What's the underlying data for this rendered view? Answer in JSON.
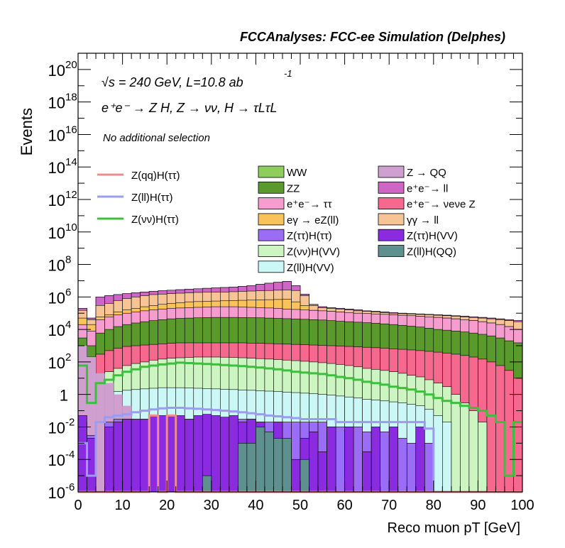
{
  "header": {
    "title": "FCCAnalyses: FCC-ee Simulation (Delphes)"
  },
  "annotations": {
    "energy": "√s = 240 GeV, L=10.8 ab",
    "energy_exponent": "-1",
    "process": "e⁺e⁻ → Z H, Z → νν, H → τLτL",
    "selection": "No additional selection"
  },
  "legend": {
    "lines": [
      {
        "label": "Z(qq)H(ττ)",
        "color": "#f08c8c"
      },
      {
        "label": "Z(ll)H(ττ)",
        "color": "#9b9bf0"
      },
      {
        "label": "Z(νν)H(ττ)",
        "color": "#3cbf3c"
      }
    ],
    "boxes_col1": [
      {
        "label": "WW",
        "color": "#8fce5e"
      },
      {
        "label": "ZZ",
        "color": "#5a9a2c"
      },
      {
        "label": "e⁺e⁻→ ττ",
        "color": "#f79ccf"
      },
      {
        "label": "eγ → eZ(ll)",
        "color": "#f9c25a"
      },
      {
        "label": "Z(ττ)H(ττ)",
        "color": "#9b6cf5"
      },
      {
        "label": "Z(νν)H(VV)",
        "color": "#ccf5c2"
      },
      {
        "label": "Z(ll)H(VV)",
        "color": "#ccf7f7"
      }
    ],
    "boxes_col2": [
      {
        "label": "Z → QQ",
        "color": "#cfa0cf"
      },
      {
        "label": "e⁺e⁻→ ll",
        "color": "#cf66c6"
      },
      {
        "label": "e⁺e⁻→ νeνe Z",
        "color": "#f6688e"
      },
      {
        "label": "γγ → ll",
        "color": "#f7c496"
      },
      {
        "label": "Z(ττ)H(VV)",
        "color": "#8a2be2"
      },
      {
        "label": "Z(ll)H(QQ)",
        "color": "#5f9090"
      }
    ]
  },
  "chart_data": {
    "type": "area",
    "title": "FCCAnalyses: FCC-ee Simulation (Delphes)",
    "xlabel": "Reco muon pT [GeV]",
    "ylabel": "Events",
    "xlim": [
      0,
      100
    ],
    "ylim": [
      1e-06,
      1e+21
    ],
    "log_y": true,
    "legend_position": "top-left",
    "x_ticks": [
      "0",
      "10",
      "20",
      "30",
      "40",
      "50",
      "60",
      "70",
      "80",
      "90",
      "100"
    ],
    "y_ticks": [
      {
        "base": "10",
        "exp": "-6",
        "value": 1e-06
      },
      {
        "base": "10",
        "exp": "-4",
        "value": 0.0001
      },
      {
        "base": "10",
        "exp": "-2",
        "value": 0.01
      },
      {
        "base": "1",
        "exp": "",
        "value": 1
      },
      {
        "base": "10",
        "exp": "2",
        "value": 100.0
      },
      {
        "base": "10",
        "exp": "4",
        "value": 10000.0
      },
      {
        "base": "10",
        "exp": "6",
        "value": 1000000.0
      },
      {
        "base": "10",
        "exp": "8",
        "value": 100000000.0
      },
      {
        "base": "10",
        "exp": "10",
        "value": 10000000000.0
      },
      {
        "base": "10",
        "exp": "12",
        "value": 1000000000000.0
      },
      {
        "base": "10",
        "exp": "14",
        "value": 100000000000000.0
      },
      {
        "base": "10",
        "exp": "16",
        "value": 1e+16
      },
      {
        "base": "10",
        "exp": "18",
        "value": 1e+18
      },
      {
        "base": "10",
        "exp": "20",
        "value": 1e+20
      }
    ],
    "stack_x_edges": [
      0,
      2,
      4,
      6,
      8,
      10,
      12,
      14,
      16,
      18,
      20,
      22,
      24,
      26,
      28,
      30,
      32,
      34,
      36,
      38,
      40,
      42,
      44,
      46,
      48,
      50,
      52,
      54,
      56,
      58,
      60,
      62,
      64,
      66,
      68,
      70,
      72,
      74,
      76,
      78,
      80,
      82,
      84,
      86,
      88,
      90,
      92,
      94,
      96,
      98,
      100
    ],
    "stack_totals": [
      {
        "name": "Z(ll)H(VV)",
        "color": "#ccf7f7",
        "values": [
          0.05,
          0.8,
          0.9,
          1.2,
          1.5,
          1.8,
          2,
          2.2,
          2.4,
          2.6,
          2.6,
          2.6,
          2.5,
          2.4,
          2.3,
          2.2,
          2.1,
          2,
          1.9,
          1.8,
          1.7,
          1.6,
          1.5,
          1.4,
          1.3,
          1.2,
          1.1,
          1,
          0.9,
          0.8,
          0.7,
          0.6,
          0.5,
          0.45,
          0.4,
          0.35,
          0.3,
          0.25,
          0.2,
          0.12,
          0.05,
          0.02,
          0,
          0,
          0,
          0,
          0,
          0,
          0,
          0
        ]
      },
      {
        "name": "Z(νν)H(VV)",
        "color": "#ccf5c2",
        "values": [
          30,
          10,
          15,
          25,
          40,
          60,
          80,
          100,
          130,
          150,
          170,
          180,
          190,
          200,
          200,
          200,
          195,
          190,
          180,
          170,
          160,
          150,
          140,
          130,
          120,
          110,
          100,
          90,
          80,
          70,
          60,
          50,
          40,
          35,
          30,
          25,
          20,
          15,
          12,
          8,
          5,
          3,
          1,
          0.3,
          0.1,
          0.02,
          0,
          0,
          0,
          0
        ]
      },
      {
        "name": "e⁺e⁻→ νeνe Z",
        "color": "#f6688e",
        "values": [
          600,
          200,
          300,
          500,
          700,
          900,
          1000,
          1100,
          1200,
          1300,
          1400,
          1500,
          1500,
          1500,
          1500,
          1500,
          1500,
          1500,
          1500,
          1450,
          1400,
          1350,
          1300,
          1250,
          1200,
          1150,
          1100,
          1050,
          1000,
          950,
          900,
          850,
          800,
          750,
          700,
          650,
          600,
          550,
          500,
          450,
          400,
          350,
          300,
          250,
          200,
          150,
          100,
          60,
          30,
          10
        ]
      },
      {
        "name": "ZZ",
        "color": "#5a9a2c",
        "values": [
          3000,
          1000,
          6000,
          10000,
          15000,
          20000,
          25000,
          30000,
          35000,
          40000,
          45000,
          48000,
          50000,
          52000,
          54000,
          55000,
          55000,
          55000,
          54000,
          53000,
          52000,
          50000,
          48000,
          46000,
          44000,
          42000,
          40000,
          38000,
          35000,
          32000,
          30000,
          28000,
          26000,
          24000,
          22000,
          20000,
          18000,
          16000,
          14000,
          12000,
          10000,
          9000,
          8000,
          7000,
          6000,
          5000,
          4000,
          3000,
          2000,
          1500
        ]
      },
      {
        "name": "e⁺e⁻→ ττ",
        "color": "#f79ccf",
        "values": [
          20000,
          8000,
          40000,
          60000,
          80000,
          100000,
          120000,
          140000,
          160000,
          180000,
          200000,
          210000,
          220000,
          230000,
          240000,
          250000,
          250000,
          250000,
          240000,
          230000,
          220000,
          210000,
          200000,
          180000,
          170000,
          160000,
          150000,
          140000,
          130000,
          120000,
          110000,
          100000,
          95000,
          90000,
          85000,
          80000,
          75000,
          70000,
          65000,
          60000,
          55000,
          50000,
          45000,
          40000,
          35000,
          30000,
          25000,
          20000,
          15000,
          10000
        ]
      },
      {
        "name": "eγ → eZ(ll)",
        "color": "#f9c25a",
        "values": [
          50000,
          20000,
          60000,
          80000,
          120000,
          160000,
          200000,
          250000,
          300000,
          350000,
          400000,
          450000,
          500000,
          520000,
          540000,
          560000,
          580000,
          600000,
          620000,
          640000,
          660000,
          680000,
          700000,
          720000,
          500000,
          300000,
          150000,
          140000,
          130000,
          120000,
          110000,
          100000,
          95000,
          90000,
          85000,
          80000,
          75000,
          70000,
          65000,
          60000,
          55000,
          50000,
          45000,
          40000,
          35000,
          30000,
          25000,
          20000,
          15000,
          10000
        ]
      },
      {
        "name": "γγ → ll",
        "color": "#f7c496",
        "values": [
          150000,
          40000,
          300000,
          400000,
          600000,
          800000,
          1000000,
          1200000,
          1400000,
          1500000,
          1600000,
          1700000,
          1800000,
          1900000,
          2000000,
          2000000,
          2000000,
          2100000,
          2200000,
          2300000,
          2400000,
          2500000,
          2600000,
          2700000,
          2500000,
          1200000,
          300000,
          220000,
          200000,
          180000,
          160000,
          140000,
          130000,
          120000,
          110000,
          100000,
          95000,
          90000,
          85000,
          80000,
          75000,
          70000,
          65000,
          60000,
          55000,
          50000,
          45000,
          40000,
          35000,
          30000
        ]
      },
      {
        "name": "e⁺e⁻→ ll",
        "color": "#cf66c6",
        "values": [
          200000,
          50000,
          1000000,
          1200000,
          1400000,
          1600000,
          1800000,
          2000000,
          2200000,
          2400000,
          2600000,
          2800000,
          3000000,
          3200000,
          3400000,
          3600000,
          3800000,
          4000000,
          4500000,
          5000000,
          6000000,
          7000000,
          8000000,
          9000000,
          5000000,
          1500000,
          350000,
          250000,
          220000,
          200000,
          180000,
          160000,
          140000,
          130000,
          120000,
          110000,
          100000,
          95000,
          90000,
          85000,
          80000,
          75000,
          70000,
          65000,
          60000,
          55000,
          50000,
          45000,
          40000,
          35000
        ]
      },
      {
        "name": "Z → QQ",
        "color": "#cfa0cf",
        "values": [
          200000,
          50000,
          1000000,
          1200000,
          1400000,
          1600000,
          1800000,
          2000000,
          2200000,
          2400000,
          2600000,
          2800000,
          3000000,
          3200000,
          3400000,
          3600000,
          3800000,
          4000000,
          4500000,
          5000000,
          6000000,
          7000000,
          8000000,
          9000000,
          5000000,
          1500000,
          350000,
          250000,
          220000,
          200000,
          180000,
          160000,
          140000,
          130000,
          120000,
          110000,
          100000,
          95000,
          90000,
          85000,
          80000,
          75000,
          70000,
          65000,
          60000,
          55000,
          50000,
          45000,
          40000,
          35000
        ]
      }
    ],
    "zqq_band": [
      {
        "name": "Z → QQ (low region)",
        "color": "#cfa0cf",
        "values": [
          1000,
          200,
          20,
          5,
          1,
          0.2
        ]
      }
    ],
    "low_bars": [
      {
        "name": "Z(ττ)H(ττ)",
        "color": "#9b6cf5",
        "values": [
          0.02,
          0.003,
          0,
          0.02,
          0.03,
          0.03,
          0.03,
          0.03,
          0.03,
          0.03,
          0.03,
          0.03,
          0.03,
          0.03,
          0.03,
          0.03,
          0.03,
          0.03,
          0.03,
          0.03,
          0.02,
          0.02,
          0.02,
          0.02,
          0.02,
          0.02,
          0.02,
          0.02,
          0.01,
          0.01,
          0.01,
          0.01,
          0.005,
          0.005,
          0.005,
          0.003,
          0.002,
          0.001,
          0.001,
          0.001,
          0,
          0,
          0,
          0,
          0,
          0,
          0,
          0,
          0,
          0
        ]
      },
      {
        "name": "Z(ττ)H(VV)",
        "color": "#8a2be2",
        "values": [
          0.05,
          0.002,
          0,
          0.01,
          0.02,
          0.03,
          0.03,
          0.03,
          0.05,
          0.05,
          0.05,
          0.05,
          0.03,
          0.05,
          0.06,
          0.05,
          0.04,
          0.05,
          0.02,
          0.03,
          0.02,
          0.005,
          0.02,
          0.001,
          0.0001,
          0.002,
          0.005,
          0.0003,
          0.01,
          0,
          0.01,
          0,
          0.0003,
          0.01,
          0,
          0.01,
          0,
          0,
          0.01,
          0,
          0,
          0,
          0,
          0,
          0,
          0,
          0,
          0,
          0,
          0
        ]
      },
      {
        "name": "Z(ll)H(QQ)",
        "color": "#5f9090",
        "values": [
          0,
          0,
          0,
          0,
          0,
          0,
          0,
          0,
          0,
          0,
          0,
          0,
          0,
          0,
          1e-05,
          0,
          0,
          0,
          0.001,
          0.001,
          0.01,
          0.005,
          0.002,
          0.002,
          0,
          0.0001,
          0,
          0,
          0,
          0,
          0,
          0,
          0,
          0,
          0,
          0,
          0,
          0,
          0,
          0,
          0,
          0,
          0,
          0,
          0,
          0,
          0,
          0,
          0,
          0
        ]
      }
    ],
    "signal_lines": [
      {
        "name": "Z(νν)H(ττ)",
        "color": "#3cbf3c",
        "values": [
          60,
          0.3,
          5,
          8,
          15,
          25,
          35,
          50,
          60,
          70,
          80,
          90,
          85,
          80,
          75,
          70,
          65,
          60,
          55,
          50,
          45,
          40,
          35,
          30,
          25,
          22,
          20,
          18,
          15,
          12,
          10,
          8,
          6,
          5,
          4,
          3,
          2.5,
          2,
          1.5,
          1,
          0.6,
          0.4,
          0.3,
          0.2,
          0.15,
          0.1,
          0.05,
          0.02,
          1e-05,
          0.02
        ]
      },
      {
        "name": "Z(ll)H(ττ)",
        "color": "#9b9bf0",
        "values": [
          0.001,
          1e-05,
          0.02,
          0.04,
          0.05,
          0.06,
          0.08,
          0.1,
          0.12,
          0.14,
          0.15,
          0.15,
          0.14,
          0.13,
          0.12,
          0.11,
          0.1,
          0.09,
          0.08,
          0.07,
          0.06,
          0.05,
          0.045,
          0.04,
          0.035,
          0.03,
          0.03,
          0.03,
          0.03,
          0.02,
          0.02,
          0.02,
          0.02,
          0.02,
          0.02,
          0.02,
          0.02,
          0.02,
          0.02,
          0.008,
          1e-06,
          1e-06,
          1e-06,
          1e-06,
          1e-06,
          1e-06,
          1e-06,
          1e-06,
          1e-06,
          1e-06
        ]
      },
      {
        "name": "Z(qq)H(ττ)",
        "color": "#f08c8c",
        "values": [
          1e-06,
          1e-06,
          1e-06,
          1e-06,
          1e-06,
          1e-06,
          1e-06,
          1e-06,
          0.05,
          1e-06,
          0.05,
          1e-06,
          1e-06,
          1e-06,
          1e-06,
          1e-06,
          1e-06,
          1e-06,
          1e-06,
          1e-06,
          1e-06,
          1e-06,
          1e-06,
          1e-06,
          1e-06,
          1e-06,
          1e-06,
          1e-06,
          1e-06,
          1e-06,
          1e-06,
          1e-06,
          1e-06,
          1e-06,
          1e-06,
          1e-06,
          1e-06,
          1e-06,
          1e-06,
          1e-06,
          1e-06,
          1e-06,
          1e-06,
          1e-06,
          1e-06,
          1e-06,
          1e-06,
          1e-06,
          1e-06,
          1e-06
        ]
      }
    ]
  }
}
